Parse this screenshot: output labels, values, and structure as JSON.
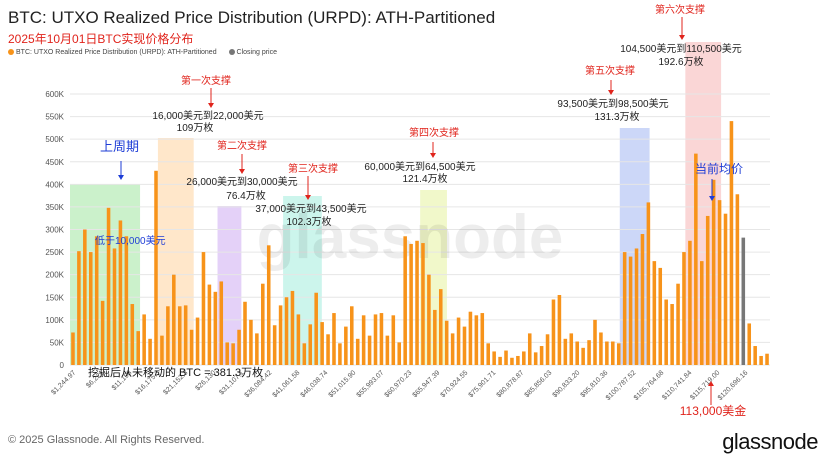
{
  "title": "BTC: UTXO Realized Price Distribution (URPD): ATH-Partitioned",
  "subtitle": "2025年10月01日BTC实现价格分布",
  "legend": [
    {
      "label": "BTC: UTXO Realized Price Distribution (URPD): ATH-Partitioned",
      "color": "#f7931a"
    },
    {
      "label": "Closing price",
      "color": "#777777"
    }
  ],
  "copyright": "© 2025 Glassnode. All Rights Reserved.",
  "brand": "glassnode",
  "watermark": "glassnode",
  "annotations": {
    "prev_week": "上周期",
    "below_10000": "低于10,000美元",
    "support1_title": "第一次支撑",
    "support1_range": "16,000美元到22,000美元",
    "support1_amount": "109万枚",
    "support2_title": "第二次支撑",
    "support2_range": "26,000美元到30,000美元",
    "support2_amount": "76.4万枚",
    "support3_title": "第三次支撑",
    "support3_range": "37,000美元到43,500美元",
    "support3_amount": "102.3万枚",
    "support4_title": "第四次支撑",
    "support4_range": "60,000美元到64,500美元",
    "support4_amount": "121.4万枚",
    "support5_title": "第五次支撑",
    "support5_range": "93,500美元到98,500美元",
    "support5_amount": "131.3万枚",
    "support6_title": "第六次支撑",
    "support6_range": "104,500美元到110,500美元",
    "support6_amount": "192.6万枚",
    "current_avg": "当前均价",
    "current_price": "113,000美金",
    "unmoved": "挖掘后从未移动的 BTC = 381.3万枚"
  },
  "chart_data": {
    "type": "bar",
    "title": "BTC: UTXO Realized Price Distribution (URPD): ATH-Partitioned",
    "ylim": [
      0,
      600000
    ],
    "yticks": [
      "0",
      "50K",
      "100K",
      "150K",
      "200K",
      "250K",
      "300K",
      "350K",
      "400K",
      "450K",
      "500K",
      "550K",
      "600K"
    ],
    "xtick_labels": [
      "$1,244.97",
      "$6,221",
      "$11,198",
      "$16,175.3",
      "$21,152.3",
      "$26,130",
      "$31,107.1",
      "$36,084.42",
      "$41,061.58",
      "$46,038.74",
      "$51,015.90",
      "$55,993.07",
      "$60,970.23",
      "$65,947.39",
      "$70,924.55",
      "$75,901.71",
      "$80,878.87",
      "$85,856.03",
      "$90,833.20",
      "$95,810.36",
      "$100,787.52",
      "$105,764.68",
      "$110,741.84",
      "$115,719.00",
      "$120,696.16"
    ],
    "x_start": 1244.97,
    "bin_width": 995.43,
    "values": [
      72000,
      252000,
      300000,
      250000,
      285000,
      142000,
      348000,
      258000,
      320000,
      285000,
      135000,
      75000,
      112000,
      58000,
      430000,
      65000,
      130000,
      200000,
      130000,
      132000,
      78000,
      105000,
      250000,
      178000,
      162000,
      185000,
      50000,
      48000,
      78000,
      140000,
      100000,
      70000,
      180000,
      265000,
      88000,
      132000,
      150000,
      164000,
      112000,
      48000,
      90000,
      160000,
      95000,
      68000,
      115000,
      48000,
      85000,
      130000,
      58000,
      110000,
      65000,
      112000,
      115000,
      65000,
      110000,
      50000,
      285000,
      268000,
      275000,
      270000,
      200000,
      122000,
      168000,
      98000,
      70000,
      105000,
      85000,
      118000,
      110000,
      115000,
      48000,
      30000,
      18000,
      32000,
      16000,
      20000,
      30000,
      70000,
      28000,
      42000,
      68000,
      145000,
      155000,
      58000,
      70000,
      52000,
      38000,
      55000,
      100000,
      72000,
      52000,
      52000,
      48000,
      250000,
      240000,
      258000,
      290000,
      360000,
      230000,
      215000,
      145000,
      135000,
      180000,
      250000,
      275000,
      468000,
      230000,
      330000,
      410000,
      365000,
      335000,
      540000,
      378000,
      282000,
      92000,
      42000,
      20000,
      25000
    ],
    "closing_price_index": 113,
    "closing_price_color": "#777777",
    "bar_color": "#f7931a",
    "highlight_bands": [
      {
        "label": "上周期",
        "from": 1244.97,
        "to": 13000,
        "color": "#8be08b"
      },
      {
        "label": "第一次支撑",
        "from": 16000,
        "to": 22000,
        "color": "#ffc98a"
      },
      {
        "label": "第二次支撑",
        "from": 26000,
        "to": 30000,
        "color": "#c49af0"
      },
      {
        "label": "第三次支撑",
        "from": 37000,
        "to": 43500,
        "color": "#8fe8d4"
      },
      {
        "label": "第四次支撑",
        "from": 60000,
        "to": 64500,
        "color": "#dff08a"
      },
      {
        "label": "第五次支撑",
        "from": 93500,
        "to": 98500,
        "color": "#8fa6f0"
      },
      {
        "label": "第六次支撑",
        "from": 104500,
        "to": 110500,
        "color": "#f5a3a3"
      }
    ]
  }
}
